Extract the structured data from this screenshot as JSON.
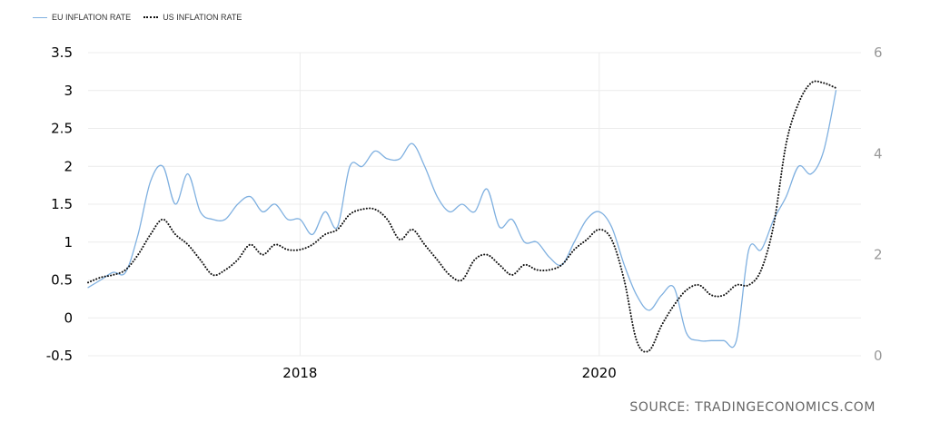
{
  "legend": {
    "eu_label": "EU INFLATION RATE",
    "us_label": "US INFLATION RATE"
  },
  "source": "SOURCE: TRADINGECONOMICS.COM",
  "colors": {
    "eu": "#7fb0e0",
    "us": "#111111",
    "grid": "#ececec"
  },
  "chart_data": {
    "type": "line",
    "grid": true,
    "legend_position": "top-left",
    "x_ticks": [
      {
        "label": "2018",
        "x": 2018.0
      },
      {
        "label": "2020",
        "x": 2020.0
      }
    ],
    "x_range": [
      2016.583,
      2021.75
    ],
    "y_left": {
      "range": [
        -0.5,
        3.5
      ],
      "ticks": [
        "3.5",
        "3",
        "2.5",
        "2",
        "1.5",
        "1",
        "0.5",
        "0",
        "-0.5"
      ]
    },
    "y_right": {
      "range": [
        0,
        6
      ],
      "ticks": [
        "6",
        "4",
        "2",
        "0"
      ]
    },
    "series": [
      {
        "name": "EU INFLATION RATE",
        "axis": "left",
        "style": "solid",
        "points": [
          [
            2016.583,
            0.4
          ],
          [
            2016.667,
            0.5
          ],
          [
            2016.75,
            0.6
          ],
          [
            2016.833,
            0.6
          ],
          [
            2016.917,
            1.1
          ],
          [
            2017.0,
            1.8
          ],
          [
            2017.083,
            2.0
          ],
          [
            2017.167,
            1.5
          ],
          [
            2017.25,
            1.9
          ],
          [
            2017.333,
            1.4
          ],
          [
            2017.417,
            1.3
          ],
          [
            2017.5,
            1.3
          ],
          [
            2017.583,
            1.5
          ],
          [
            2017.667,
            1.6
          ],
          [
            2017.75,
            1.4
          ],
          [
            2017.833,
            1.5
          ],
          [
            2017.917,
            1.3
          ],
          [
            2018.0,
            1.3
          ],
          [
            2018.083,
            1.1
          ],
          [
            2018.167,
            1.4
          ],
          [
            2018.25,
            1.2
          ],
          [
            2018.333,
            2.0
          ],
          [
            2018.417,
            2.0
          ],
          [
            2018.5,
            2.2
          ],
          [
            2018.583,
            2.1
          ],
          [
            2018.667,
            2.1
          ],
          [
            2018.75,
            2.3
          ],
          [
            2018.833,
            2.0
          ],
          [
            2018.917,
            1.6
          ],
          [
            2019.0,
            1.4
          ],
          [
            2019.083,
            1.5
          ],
          [
            2019.167,
            1.4
          ],
          [
            2019.25,
            1.7
          ],
          [
            2019.333,
            1.2
          ],
          [
            2019.417,
            1.3
          ],
          [
            2019.5,
            1.0
          ],
          [
            2019.583,
            1.0
          ],
          [
            2019.667,
            0.8
          ],
          [
            2019.75,
            0.7
          ],
          [
            2019.833,
            1.0
          ],
          [
            2019.917,
            1.3
          ],
          [
            2020.0,
            1.4
          ],
          [
            2020.083,
            1.2
          ],
          [
            2020.167,
            0.7
          ],
          [
            2020.25,
            0.3
          ],
          [
            2020.333,
            0.1
          ],
          [
            2020.417,
            0.3
          ],
          [
            2020.5,
            0.4
          ],
          [
            2020.583,
            -0.2
          ],
          [
            2020.667,
            -0.3
          ],
          [
            2020.75,
            -0.3
          ],
          [
            2020.833,
            -0.3
          ],
          [
            2020.917,
            -0.3
          ],
          [
            2021.0,
            0.9
          ],
          [
            2021.083,
            0.9
          ],
          [
            2021.167,
            1.3
          ],
          [
            2021.25,
            1.6
          ],
          [
            2021.333,
            2.0
          ],
          [
            2021.417,
            1.9
          ],
          [
            2021.5,
            2.2
          ],
          [
            2021.583,
            3.0
          ]
        ]
      },
      {
        "name": "US INFLATION RATE",
        "axis": "right",
        "style": "dotted",
        "points": [
          [
            2016.583,
            1.45
          ],
          [
            2016.667,
            1.55
          ],
          [
            2016.75,
            1.6
          ],
          [
            2016.833,
            1.7
          ],
          [
            2016.917,
            2.0
          ],
          [
            2017.0,
            2.4
          ],
          [
            2017.083,
            2.7
          ],
          [
            2017.167,
            2.4
          ],
          [
            2017.25,
            2.2
          ],
          [
            2017.333,
            1.9
          ],
          [
            2017.417,
            1.6
          ],
          [
            2017.5,
            1.7
          ],
          [
            2017.583,
            1.9
          ],
          [
            2017.667,
            2.2
          ],
          [
            2017.75,
            2.0
          ],
          [
            2017.833,
            2.2
          ],
          [
            2017.917,
            2.1
          ],
          [
            2018.0,
            2.1
          ],
          [
            2018.083,
            2.2
          ],
          [
            2018.167,
            2.4
          ],
          [
            2018.25,
            2.5
          ],
          [
            2018.333,
            2.8
          ],
          [
            2018.417,
            2.9
          ],
          [
            2018.5,
            2.9
          ],
          [
            2018.583,
            2.7
          ],
          [
            2018.667,
            2.3
          ],
          [
            2018.75,
            2.5
          ],
          [
            2018.833,
            2.2
          ],
          [
            2018.917,
            1.9
          ],
          [
            2019.0,
            1.6
          ],
          [
            2019.083,
            1.5
          ],
          [
            2019.167,
            1.9
          ],
          [
            2019.25,
            2.0
          ],
          [
            2019.333,
            1.8
          ],
          [
            2019.417,
            1.6
          ],
          [
            2019.5,
            1.8
          ],
          [
            2019.583,
            1.7
          ],
          [
            2019.667,
            1.7
          ],
          [
            2019.75,
            1.8
          ],
          [
            2019.833,
            2.1
          ],
          [
            2019.917,
            2.3
          ],
          [
            2020.0,
            2.5
          ],
          [
            2020.083,
            2.3
          ],
          [
            2020.167,
            1.5
          ],
          [
            2020.25,
            0.3
          ],
          [
            2020.333,
            0.1
          ],
          [
            2020.417,
            0.6
          ],
          [
            2020.5,
            1.0
          ],
          [
            2020.583,
            1.3
          ],
          [
            2020.667,
            1.4
          ],
          [
            2020.75,
            1.2
          ],
          [
            2020.833,
            1.2
          ],
          [
            2020.917,
            1.4
          ],
          [
            2021.0,
            1.4
          ],
          [
            2021.083,
            1.7
          ],
          [
            2021.167,
            2.6
          ],
          [
            2021.25,
            4.2
          ],
          [
            2021.333,
            5.0
          ],
          [
            2021.417,
            5.4
          ],
          [
            2021.5,
            5.4
          ],
          [
            2021.583,
            5.3
          ]
        ]
      }
    ]
  }
}
